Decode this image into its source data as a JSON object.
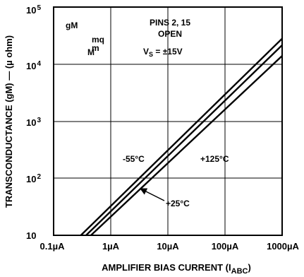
{
  "chart_data": {
    "type": "line",
    "x_scale": "log",
    "y_scale": "log",
    "xlim": [
      0.1,
      1000
    ],
    "ylim": [
      10,
      100000
    ],
    "grid": true,
    "xlabel": {
      "main": "AMPLIFIER BIAS CURRENT (I",
      "sub": "ABC",
      "close": ")"
    },
    "ylabel": "TRANSCONDUCTANCE (gM) — (µ ohm)",
    "x_ticks": [
      "0.1µA",
      "1µA",
      "10µA",
      "100µA",
      "1000µA"
    ],
    "y_ticks": [
      {
        "base": "10",
        "exp": "5"
      },
      {
        "base": "10",
        "exp": "4"
      },
      {
        "base": "10",
        "exp": "3"
      },
      {
        "base": "10",
        "exp": "2"
      },
      {
        "base": "10",
        "exp": ""
      }
    ],
    "series": [
      {
        "name": "-55°C",
        "x": [
          0.3,
          1000
        ],
        "y": [
          10,
          28000
        ]
      },
      {
        "name": "+25°C",
        "x": [
          0.37,
          1000
        ],
        "y": [
          10,
          21500
        ]
      },
      {
        "name": "+125°C",
        "x": [
          0.45,
          1000
        ],
        "y": [
          10,
          14000
        ]
      }
    ],
    "annotations": {
      "legend_gm": "gM",
      "legend_mq": "mq",
      "legend_m1": "m",
      "legend_m2": "M",
      "pins_line1": "PINS 2, 15",
      "pins_line2": "OPEN",
      "vs_main": "V",
      "vs_sub": "S",
      "vs_value": " = ±15V",
      "label_m55": "-55°C",
      "label_p125": "+125°C",
      "label_p25": "+25°C"
    }
  }
}
